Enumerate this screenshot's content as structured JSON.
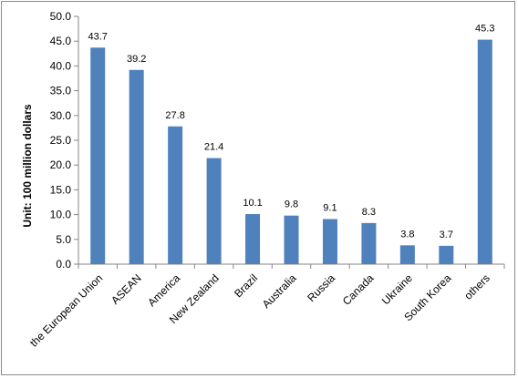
{
  "chart_data": {
    "type": "bar",
    "title": "",
    "xlabel": "",
    "ylabel": "Unit: 100 million dollars",
    "ylim": [
      0,
      50
    ],
    "ytick_step": 5,
    "ytick_labels": [
      "0.0",
      "5.0",
      "10.0",
      "15.0",
      "20.0",
      "25.0",
      "30.0",
      "35.0",
      "40.0",
      "45.0",
      "50.0"
    ],
    "categories": [
      "the European Union",
      "ASEAN",
      "America",
      "New Zealand",
      "Brazil",
      "Australia",
      "Russia",
      "Canada",
      "Ukraine",
      "South Korea",
      "others"
    ],
    "values": [
      43.7,
      39.2,
      27.8,
      21.4,
      10.1,
      9.8,
      9.1,
      8.3,
      3.8,
      3.7,
      45.3
    ],
    "value_labels": [
      "43.7",
      "39.2",
      "27.8",
      "21.4",
      "10.1",
      "9.8",
      "9.1",
      "8.3",
      "3.8",
      "3.7",
      "45.3"
    ],
    "bar_color": "#4f81bd",
    "grid": false,
    "legend": "none"
  }
}
